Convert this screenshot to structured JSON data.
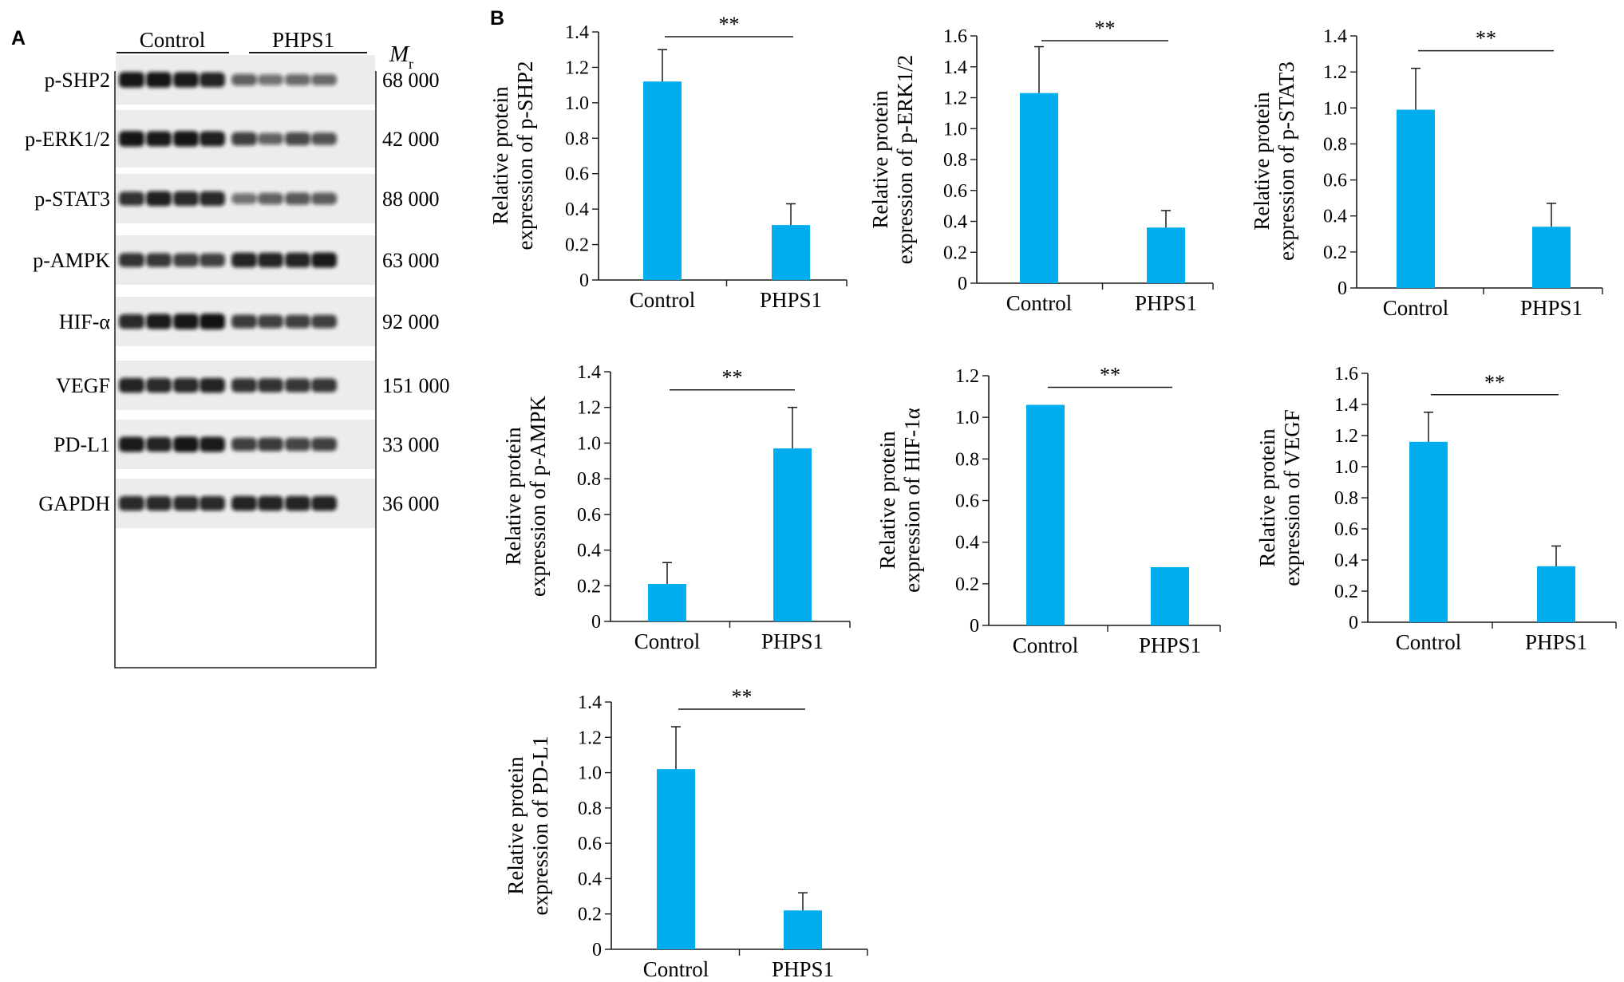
{
  "panel_a": {
    "letter": "A",
    "group_labels": [
      "Control",
      "PHPS1"
    ],
    "mr_symbol": "M",
    "mr_subscript": "r",
    "rows": [
      {
        "protein": "p-SHP2",
        "mw": "68 000",
        "intensity": [
          0.95,
          0.95,
          0.92,
          0.88,
          0.55,
          0.45,
          0.5,
          0.5
        ]
      },
      {
        "protein": "p-ERK1/2",
        "mw": "42 000",
        "intensity": [
          0.95,
          0.92,
          0.95,
          0.9,
          0.72,
          0.55,
          0.68,
          0.62
        ]
      },
      {
        "protein": "p-STAT3",
        "mw": "88 000",
        "intensity": [
          0.8,
          0.9,
          0.85,
          0.85,
          0.45,
          0.55,
          0.6,
          0.58
        ]
      },
      {
        "protein": "p-AMPK",
        "mw": "63 000",
        "intensity": [
          0.8,
          0.78,
          0.72,
          0.72,
          0.88,
          0.88,
          0.88,
          0.92
        ]
      },
      {
        "protein": "HIF-α",
        "mw": "92 000",
        "intensity": [
          0.85,
          0.92,
          0.95,
          0.98,
          0.75,
          0.72,
          0.72,
          0.72
        ]
      },
      {
        "protein": "VEGF",
        "mw": "151 000",
        "intensity": [
          0.88,
          0.85,
          0.85,
          0.88,
          0.8,
          0.8,
          0.78,
          0.78
        ]
      },
      {
        "protein": "PD-L1",
        "mw": "33 000",
        "intensity": [
          0.92,
          0.88,
          0.95,
          0.92,
          0.72,
          0.75,
          0.7,
          0.72
        ]
      },
      {
        "protein": "GAPDH",
        "mw": "36 000",
        "intensity": [
          0.85,
          0.85,
          0.85,
          0.85,
          0.88,
          0.88,
          0.88,
          0.88
        ]
      }
    ]
  },
  "panel_b": {
    "letter": "B"
  },
  "colors": {
    "bar": "#00aeef",
    "axis": "#1a1a1a",
    "band": "#111111"
  },
  "chart_data": [
    {
      "type": "bar",
      "categories": [
        "Control",
        "PHPS1"
      ],
      "values": [
        1.12,
        0.31
      ],
      "errors": [
        0.18,
        0.12
      ],
      "ylabel": [
        "Relative protein",
        "expression of p-SHP2"
      ],
      "ylim": [
        0,
        1.4
      ],
      "yticks": [
        0,
        0.2,
        0.4,
        0.6,
        0.8,
        1.0,
        1.2,
        1.4
      ],
      "tick_labels": [
        "0",
        "0.2",
        "0.4",
        "0.6",
        "0.8",
        "1.0",
        "1.2",
        "1.4"
      ],
      "significance": "**"
    },
    {
      "type": "bar",
      "categories": [
        "Control",
        "PHPS1"
      ],
      "values": [
        1.23,
        0.36
      ],
      "errors": [
        0.3,
        0.11
      ],
      "ylabel": [
        "Relative protein",
        "expression of p-ERK1/2"
      ],
      "ylim": [
        0,
        1.6
      ],
      "yticks": [
        0,
        0.2,
        0.4,
        0.6,
        0.8,
        1.0,
        1.2,
        1.4,
        1.6
      ],
      "tick_labels": [
        "0",
        "0.2",
        "0.4",
        "0.6",
        "0.8",
        "1.0",
        "1.2",
        "1.4",
        "1.6"
      ],
      "significance": "**"
    },
    {
      "type": "bar",
      "categories": [
        "Control",
        "PHPS1"
      ],
      "values": [
        0.99,
        0.34
      ],
      "errors": [
        0.23,
        0.13
      ],
      "ylabel": [
        "Relative protein",
        "expression of p-STAT3"
      ],
      "ylim": [
        0,
        1.4
      ],
      "yticks": [
        0,
        0.2,
        0.4,
        0.6,
        0.8,
        1.0,
        1.2,
        1.4
      ],
      "tick_labels": [
        "0",
        "0.2",
        "0.4",
        "0.6",
        "0.8",
        "1.0",
        "1.2",
        "1.4"
      ],
      "significance": "**"
    },
    {
      "type": "bar",
      "categories": [
        "Control",
        "PHPS1"
      ],
      "values": [
        0.21,
        0.97
      ],
      "errors": [
        0.12,
        0.23
      ],
      "ylabel": [
        "Relative protein",
        "expression of p-AMPK"
      ],
      "ylim": [
        0,
        1.4
      ],
      "yticks": [
        0,
        0.2,
        0.4,
        0.6,
        0.8,
        1.0,
        1.2,
        1.4
      ],
      "tick_labels": [
        "0",
        "0.2",
        "0.4",
        "0.6",
        "0.8",
        "1.0",
        "1.2",
        "1.4"
      ],
      "significance": "**"
    },
    {
      "type": "bar",
      "categories": [
        "Control",
        "PHPS1"
      ],
      "values": [
        1.06,
        0.28
      ],
      "errors": [
        0,
        0
      ],
      "ylabel": [
        "Relative protein",
        "expression of HIF-1α"
      ],
      "ylim": [
        0,
        1.2
      ],
      "yticks": [
        0,
        0.2,
        0.4,
        0.6,
        0.8,
        1.0,
        1.2
      ],
      "tick_labels": [
        "0",
        "0.2",
        "0.4",
        "0.6",
        "0.8",
        "1.0",
        "1.2"
      ],
      "significance": "**"
    },
    {
      "type": "bar",
      "categories": [
        "Control",
        "PHPS1"
      ],
      "values": [
        1.16,
        0.36
      ],
      "errors": [
        0.19,
        0.13
      ],
      "ylabel": [
        "Relative protein",
        "expression of VEGF"
      ],
      "ylim": [
        0,
        1.6
      ],
      "yticks": [
        0,
        0.2,
        0.4,
        0.6,
        0.8,
        1.0,
        1.2,
        1.4,
        1.6
      ],
      "tick_labels": [
        "0",
        "0.2",
        "0.4",
        "0.6",
        "0.8",
        "1.0",
        "1.2",
        "1.4",
        "1.6"
      ],
      "significance": "**"
    },
    {
      "type": "bar",
      "categories": [
        "Control",
        "PHPS1"
      ],
      "values": [
        1.02,
        0.22
      ],
      "errors": [
        0.24,
        0.1
      ],
      "ylabel": [
        "Relative protein",
        "expression of PD-L1"
      ],
      "ylim": [
        0,
        1.4
      ],
      "yticks": [
        0,
        0.2,
        0.4,
        0.6,
        0.8,
        1.0,
        1.2,
        1.4
      ],
      "tick_labels": [
        "0",
        "0.2",
        "0.4",
        "0.6",
        "0.8",
        "1.0",
        "1.2",
        "1.4"
      ],
      "significance": "**"
    }
  ]
}
